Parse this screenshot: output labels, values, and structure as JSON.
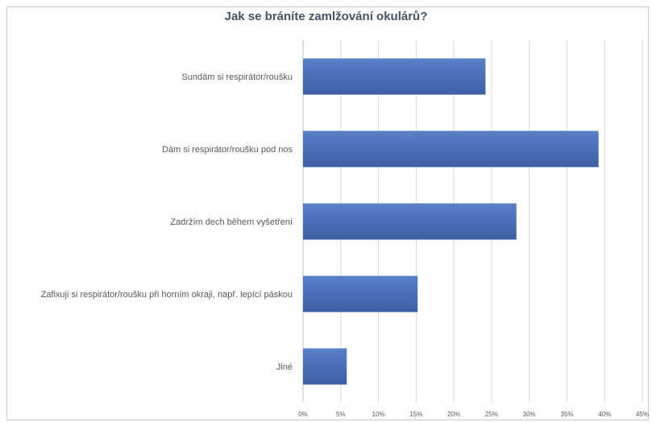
{
  "chart_data": {
    "type": "bar",
    "orientation": "horizontal",
    "title": "Jak se bráníte zamlžování okulárů?",
    "categories": [
      "Sundám si respirátor/roušku",
      "Dám si respirátor/roušku pod nos",
      "Zadržím dech během vyšetření",
      "Zafixuji si respirátor/roušku při horním okraji, např. lepící páskou",
      "Jiné"
    ],
    "values": [
      24.2,
      39.2,
      28.3,
      15.2,
      5.8
    ],
    "value_unit": "%",
    "xlim": [
      0,
      45
    ],
    "x_ticks": [
      0,
      5,
      10,
      15,
      20,
      25,
      30,
      35,
      40,
      45
    ],
    "x_tick_labels": [
      "0%",
      "5%",
      "10%",
      "15%",
      "20%",
      "25%",
      "30%",
      "35%",
      "40%",
      "45%"
    ],
    "grid": true,
    "legend": "none",
    "bar_color": "#4a6fb8"
  }
}
